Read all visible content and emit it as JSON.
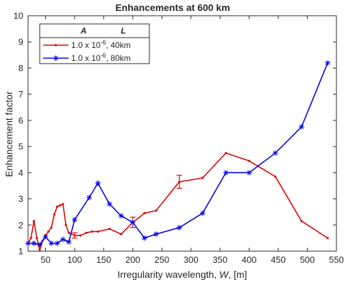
{
  "chart_data": {
    "type": "line",
    "title": "Enhancements at 600 km",
    "xlabel": "Irregularity wavelength, W, [m]",
    "xlabel_parts": [
      "Irregularity wavelength, ",
      "W",
      ", [m]"
    ],
    "ylabel": "Enhancement factor",
    "xlim": [
      20,
      550
    ],
    "ylim": [
      1,
      10
    ],
    "xticks": [
      50,
      100,
      150,
      200,
      250,
      300,
      350,
      400,
      450,
      500,
      550
    ],
    "yticks": [
      1,
      2,
      3,
      4,
      5,
      6,
      7,
      8,
      9,
      10
    ],
    "grid": false,
    "legend": {
      "placement": "top-left",
      "headers": [
        "A",
        "L"
      ],
      "entries": [
        "1.0 x 10^-6,  40km",
        "1.0 x 10^-6,  80km"
      ]
    },
    "series": [
      {
        "name": "1.0 x 10^-6,  40km",
        "color": "#e00000",
        "marker": "dot",
        "x": [
          20,
          25,
          30,
          35,
          40,
          45,
          50,
          55,
          60,
          65,
          70,
          75,
          80,
          85,
          90,
          100,
          110,
          120,
          130,
          140,
          160,
          180,
          200,
          220,
          240,
          280,
          320,
          360,
          400,
          445,
          490,
          535
        ],
        "y": [
          1.3,
          1.5,
          2.15,
          1.5,
          1.05,
          1.4,
          1.6,
          1.75,
          1.9,
          2.4,
          2.7,
          2.75,
          2.8,
          2.0,
          1.7,
          1.6,
          1.6,
          1.7,
          1.75,
          1.75,
          1.85,
          1.65,
          2.1,
          2.45,
          2.55,
          3.65,
          3.8,
          4.75,
          4.45,
          3.85,
          2.15,
          1.5
        ],
        "error_bars": [
          {
            "x": 100,
            "y": 1.6,
            "low": 1.5,
            "high": 1.7
          },
          {
            "x": 200,
            "y": 2.1,
            "low": 1.9,
            "high": 2.3
          },
          {
            "x": 280,
            "y": 3.65,
            "low": 3.4,
            "high": 3.9
          }
        ]
      },
      {
        "name": "1.0 x 10^-6,  80km",
        "color": "#0000e6",
        "marker": "asterisk",
        "x": [
          20,
          30,
          40,
          50,
          60,
          70,
          80,
          90,
          100,
          125,
          140,
          160,
          180,
          200,
          220,
          240,
          280,
          320,
          360,
          400,
          445,
          490,
          535
        ],
        "y": [
          1.3,
          1.3,
          1.25,
          1.55,
          1.3,
          1.3,
          1.45,
          1.35,
          2.2,
          3.05,
          3.6,
          2.8,
          2.35,
          2.1,
          1.5,
          1.65,
          1.9,
          2.45,
          4.0,
          4.0,
          4.75,
          5.75,
          8.2
        ]
      }
    ]
  }
}
